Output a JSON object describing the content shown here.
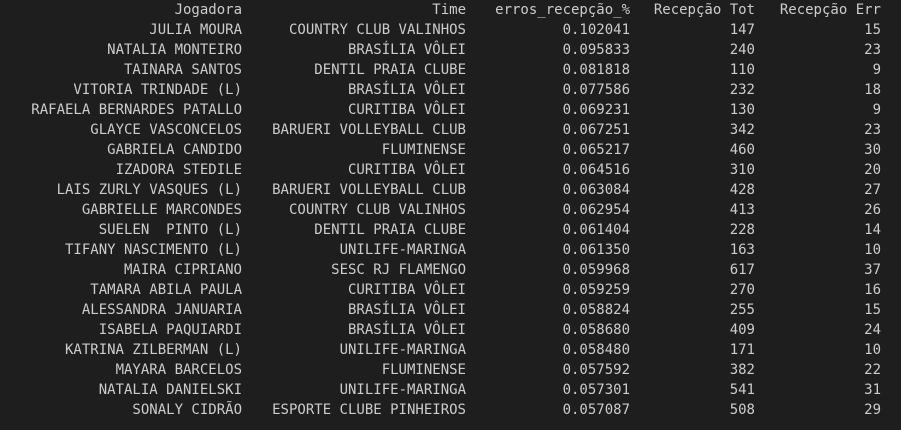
{
  "table": {
    "headers": [
      "Jogadora",
      "Time",
      "erros_recepção_%",
      "Recepção Tot",
      "Recepção Err"
    ],
    "rows": [
      [
        "JULIA MOURA",
        "COUNTRY CLUB VALINHOS",
        "0.102041",
        "147",
        "15"
      ],
      [
        "NATALIA MONTEIRO",
        "BRASÍLIA VÔLEI",
        "0.095833",
        "240",
        "23"
      ],
      [
        "TAINARA SANTOS",
        "DENTIL PRAIA CLUBE",
        "0.081818",
        "110",
        "9"
      ],
      [
        "VITORIA TRINDADE (L)",
        "BRASÍLIA VÔLEI",
        "0.077586",
        "232",
        "18"
      ],
      [
        "RAFAELA BERNARDES PATALLO",
        "CURITIBA VÔLEI",
        "0.069231",
        "130",
        "9"
      ],
      [
        "GLAYCE VASCONCELOS",
        "BARUERI VOLLEYBALL CLUB",
        "0.067251",
        "342",
        "23"
      ],
      [
        "GABRIELA CANDIDO",
        "FLUMINENSE",
        "0.065217",
        "460",
        "30"
      ],
      [
        "IZADORA STEDILE",
        "CURITIBA VÔLEI",
        "0.064516",
        "310",
        "20"
      ],
      [
        "LAIS ZURLY VASQUES (L)",
        "BARUERI VOLLEYBALL CLUB",
        "0.063084",
        "428",
        "27"
      ],
      [
        "GABRIELLE MARCONDES",
        "COUNTRY CLUB VALINHOS",
        "0.062954",
        "413",
        "26"
      ],
      [
        "SUELEN  PINTO (L)",
        "DENTIL PRAIA CLUBE",
        "0.061404",
        "228",
        "14"
      ],
      [
        "TIFANY NASCIMENTO (L)",
        "UNILIFE-MARINGA",
        "0.061350",
        "163",
        "10"
      ],
      [
        "MAIRA CIPRIANO",
        "SESC RJ FLAMENGO",
        "0.059968",
        "617",
        "37"
      ],
      [
        "TAMARA ABILA PAULA",
        "CURITIBA VÔLEI",
        "0.059259",
        "270",
        "16"
      ],
      [
        "ALESSANDRA JANUARIA",
        "BRASÍLIA VÔLEI",
        "0.058824",
        "255",
        "15"
      ],
      [
        "ISABELA PAQUIARDI",
        "BRASÍLIA VÔLEI",
        "0.058680",
        "409",
        "24"
      ],
      [
        "KATRINA ZILBERMAN (L)",
        "UNILIFE-MARINGA",
        "0.058480",
        "171",
        "10"
      ],
      [
        "MAYARA BARCELOS",
        "FLUMINENSE",
        "0.057592",
        "382",
        "22"
      ],
      [
        "NATALIA DANIELSKI",
        "UNILIFE-MARINGA",
        "0.057301",
        "541",
        "31"
      ],
      [
        "SONALY CIDRÃO",
        "ESPORTE CLUBE PINHEIROS",
        "0.057087",
        "508",
        "29"
      ]
    ]
  }
}
